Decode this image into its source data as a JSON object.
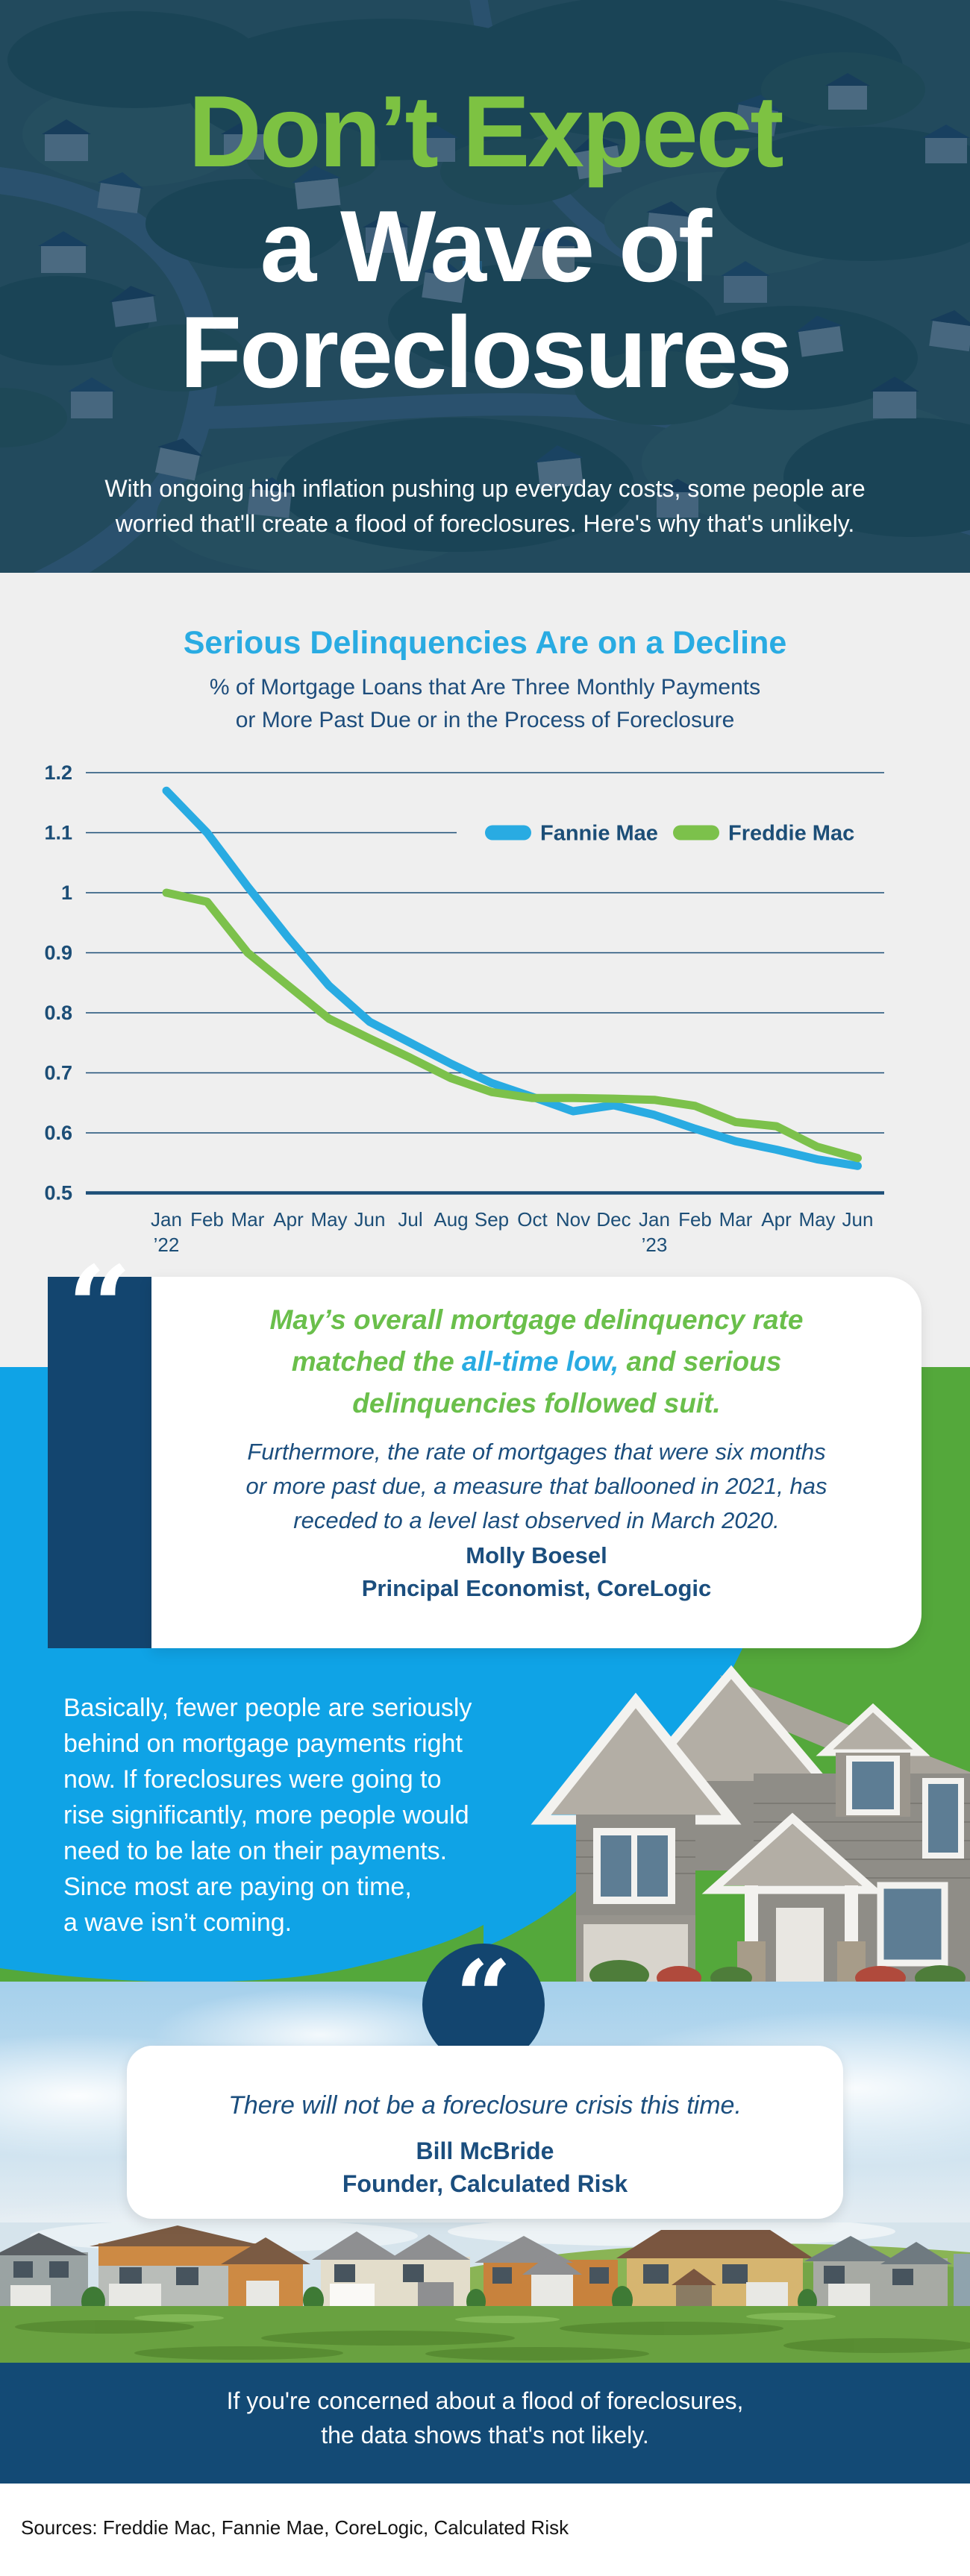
{
  "header": {
    "title_line1": "Don’t Expect",
    "title_line2": "a Wave of",
    "title_line3": "Foreclosures",
    "intro_lines": [
      "With ongoing high inflation pushing up everyday costs, some people are",
      "worried that'll create a flood of foreclosures. Here's why that's unlikely."
    ]
  },
  "chart_section": {
    "title": "Serious Delinquencies Are on a Decline",
    "subtitle_lines": [
      "% of Mortgage Loans that Are Three Monthly Payments",
      "or More Past Due or in the Process of Foreclosure"
    ]
  },
  "chart_data": {
    "type": "line",
    "title": "Serious Delinquencies Are on a Decline",
    "subtitle": "% of Mortgage Loans that Are Three Monthly Payments or More Past Due or in the Process of Foreclosure",
    "categories": [
      "Jan",
      "Feb",
      "Mar",
      "Apr",
      "May",
      "Jun",
      "Jul",
      "Aug",
      "Sep",
      "Oct",
      "Nov",
      "Dec",
      "Jan",
      "Feb",
      "Mar",
      "Apr",
      "May",
      "Jun"
    ],
    "year_labels": [
      {
        "index": 0,
        "label": "’22"
      },
      {
        "index": 12,
        "label": "’23"
      }
    ],
    "yticks": [
      "1.2",
      "1.1",
      "1",
      "0.9",
      "0.8",
      "0.7",
      "0.6",
      "0.5"
    ],
    "ylim": [
      0.5,
      1.2
    ],
    "grid": true,
    "legend_position": "top-right",
    "series": [
      {
        "name": "Fannie Mae",
        "color": "#29ABE2",
        "values": [
          1.17,
          1.1,
          1.01,
          0.925,
          0.845,
          0.785,
          0.75,
          0.715,
          0.683,
          0.66,
          0.636,
          0.646,
          0.63,
          0.607,
          0.586,
          0.572,
          0.556,
          0.545
        ]
      },
      {
        "name": "Freddie Mac",
        "color": "#7CC14B",
        "values": [
          1.0,
          0.985,
          0.9,
          0.845,
          0.79,
          0.757,
          0.725,
          0.691,
          0.668,
          0.658,
          0.658,
          0.657,
          0.655,
          0.645,
          0.618,
          0.611,
          0.577,
          0.558
        ]
      }
    ]
  },
  "quote1": {
    "mark": "“",
    "line1": "May’s overall mortgage delinquency rate",
    "line2_pre": "matched the ",
    "line2_highlight": "all-time low,",
    "line2_post": " and serious",
    "line3": "delinquencies followed suit.",
    "body_lines": [
      "Furthermore, the rate of mortgages that were six months",
      "or more past due, a measure that ballooned in 2021, has",
      "receded to a level last observed in March 2020."
    ],
    "author": "Molly Boesel",
    "role": "Principal Economist, CoreLogic"
  },
  "body": {
    "lines": [
      "Basically, fewer people are seriously",
      "behind on mortgage payments right",
      "now. If foreclosures were going to",
      "rise significantly, more people would",
      "need to be late on their payments.",
      "Since most are paying on time,",
      "a wave isn’t coming."
    ]
  },
  "quote2": {
    "mark": "“",
    "text": "There will not be a foreclosure crisis this time.",
    "author": "Bill McBride",
    "role": "Founder, Calculated Risk"
  },
  "footer": {
    "lines": [
      "If you're concerned about a flood of foreclosures,",
      "the data shows that's not likely."
    ]
  },
  "sources": "Sources: Freddie Mac, Fannie Mae, CoreLogic, Calculated Risk",
  "colors": {
    "accent_green": "#7DC242",
    "accent_blue": "#29ABE2",
    "navy": "#13456F",
    "section_blue": "#0FA3E6",
    "footer_navy": "#134A75",
    "chart_bg": "#EFEFEF"
  }
}
